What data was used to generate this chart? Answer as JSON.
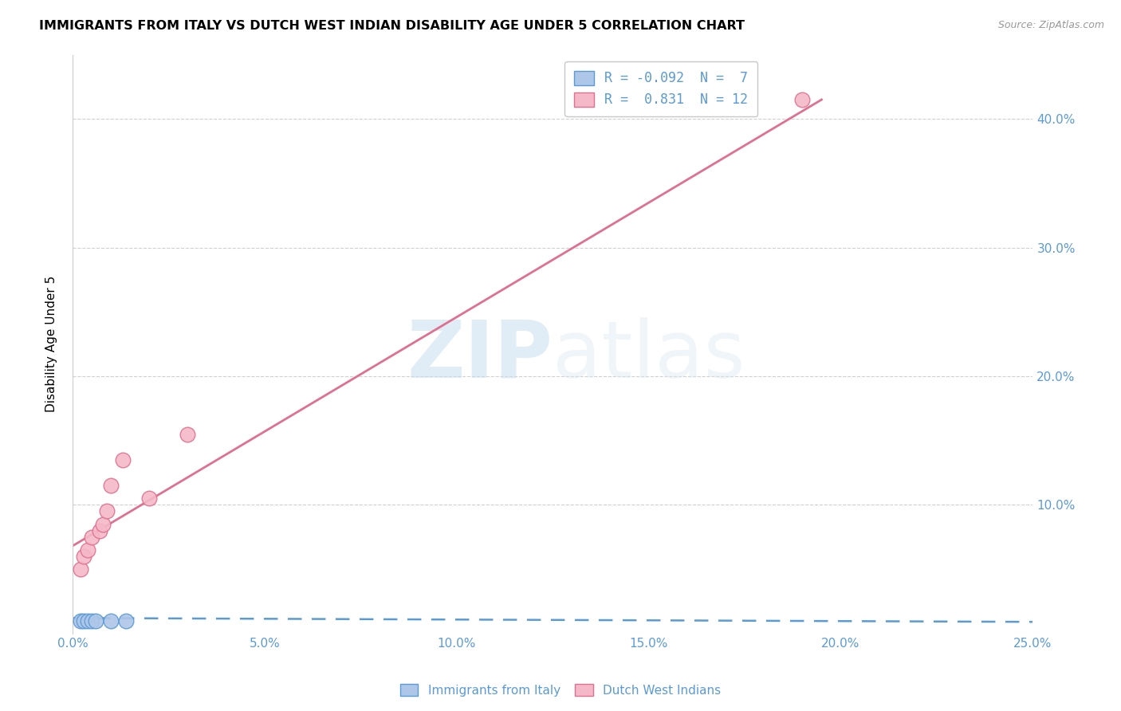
{
  "title": "IMMIGRANTS FROM ITALY VS DUTCH WEST INDIAN DISABILITY AGE UNDER 5 CORRELATION CHART",
  "source": "Source: ZipAtlas.com",
  "ylabel": "Disability Age Under 5",
  "xlim": [
    0.0,
    0.25
  ],
  "ylim": [
    0.0,
    0.45
  ],
  "xtick_labels": [
    "0.0%",
    "5.0%",
    "10.0%",
    "15.0%",
    "20.0%",
    "25.0%"
  ],
  "xtick_vals": [
    0.0,
    0.05,
    0.1,
    0.15,
    0.2,
    0.25
  ],
  "ytick_vals": [
    0.1,
    0.2,
    0.3,
    0.4
  ],
  "right_ytick_labels": [
    "10.0%",
    "20.0%",
    "30.0%",
    "40.0%"
  ],
  "right_ytick_vals": [
    0.1,
    0.2,
    0.3,
    0.4
  ],
  "italy_color": "#aec6e8",
  "italy_edge_color": "#5b9bd5",
  "dwi_color": "#f4b8c8",
  "dwi_edge_color": "#e07090",
  "italy_R": -0.092,
  "italy_N": 7,
  "dwi_R": 0.831,
  "dwi_N": 12,
  "legend_R_label_italy": "R = -0.092  N =  7",
  "legend_R_label_dwi": "R =  0.831  N = 12",
  "italy_x": [
    0.002,
    0.003,
    0.004,
    0.005,
    0.006,
    0.01,
    0.014
  ],
  "italy_y": [
    0.01,
    0.01,
    0.01,
    0.01,
    0.01,
    0.01,
    0.01
  ],
  "dwi_x": [
    0.002,
    0.003,
    0.004,
    0.005,
    0.007,
    0.008,
    0.009,
    0.01,
    0.013,
    0.02,
    0.03,
    0.19
  ],
  "dwi_y": [
    0.05,
    0.06,
    0.065,
    0.075,
    0.08,
    0.085,
    0.095,
    0.115,
    0.135,
    0.105,
    0.155,
    0.415
  ],
  "italy_line_x0": 0.0,
  "italy_line_x1": 0.25,
  "italy_line_y0": 0.012,
  "italy_line_y1": 0.009,
  "dwi_line_x0": 0.0,
  "dwi_line_x1": 0.195,
  "dwi_line_y0": 0.068,
  "dwi_line_y1": 0.415,
  "italy_line_color": "#5b9bd5",
  "dwi_line_color": "#e07090",
  "watermark_zip": "ZIP",
  "watermark_atlas": "atlas",
  "background_color": "#ffffff",
  "grid_color": "#d0d0d0"
}
